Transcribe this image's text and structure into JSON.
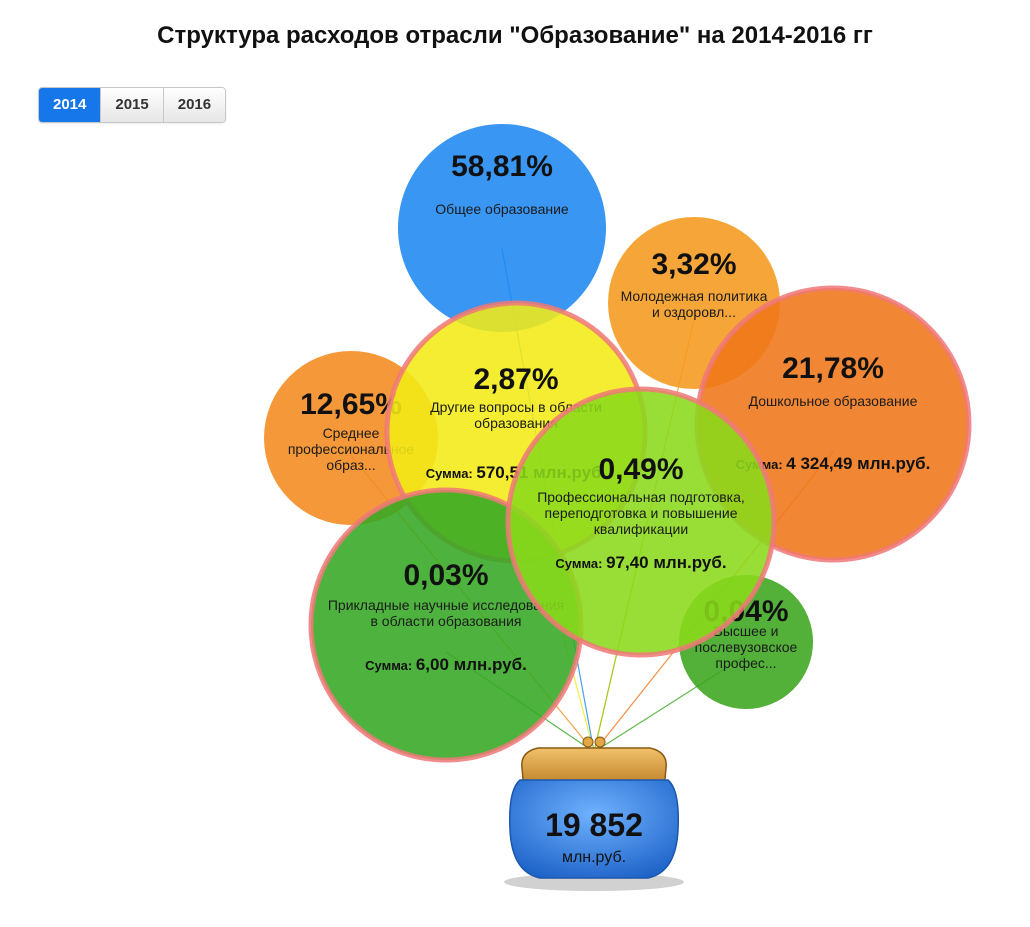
{
  "page": {
    "title": "Структура расходов отрасли \"Образование\" на 2014-2016 гг"
  },
  "year_tabs": [
    {
      "label": "2014",
      "active": true
    },
    {
      "label": "2015",
      "active": false
    },
    {
      "label": "2016",
      "active": false
    }
  ],
  "wallet": {
    "total": "19 852",
    "unit": "млн.руб."
  },
  "chart_data": {
    "type": "bubble",
    "title": "Структура расходов отрасли \"Образование\" на 2014-2016 гг",
    "selected_year": "2014",
    "total_value": 19852,
    "total_unit": "млн.руб.",
    "sum_prefix": "Сумма:",
    "sum_unit": "млн.руб.",
    "series": [
      {
        "id": "general",
        "percent_label": "58,81%",
        "percent": 58.81,
        "lines": [
          "Общее образование"
        ],
        "sum": null,
        "color": "#1e88f0",
        "highlight": false
      },
      {
        "id": "youth",
        "percent_label": "3,32%",
        "percent": 3.32,
        "lines": [
          "Молодежная политика",
          "и оздоровл..."
        ],
        "sum": null,
        "color": "#f59a1e",
        "highlight": false
      },
      {
        "id": "preschool",
        "percent_label": "21,78%",
        "percent": 21.78,
        "lines": [
          "Дошкольное образование"
        ],
        "sum": "4 324,49",
        "color": "#ef7618",
        "highlight": true
      },
      {
        "id": "secondary",
        "percent_label": "12,65%",
        "percent": 12.65,
        "lines": [
          "Среднее",
          "профессиональное",
          "образ..."
        ],
        "sum": null,
        "color": "#f38a1e",
        "highlight": false
      },
      {
        "id": "other",
        "percent_label": "2,87%",
        "percent": 2.87,
        "lines": [
          "Другие вопросы в области",
          "образования"
        ],
        "sum": "570,51",
        "color": "#f2ea16",
        "highlight": true
      },
      {
        "id": "applied",
        "percent_label": "0,03%",
        "percent": 0.03,
        "lines": [
          "Прикладные научные исследования",
          "в области образования"
        ],
        "sum": "6,00",
        "color": "#35a823",
        "highlight": true
      },
      {
        "id": "higher",
        "percent_label": "0,04%",
        "percent": 0.04,
        "lines": [
          "Высшее и",
          "послевузовское",
          "профес..."
        ],
        "sum": null,
        "color": "#3ba51e",
        "highlight": false
      },
      {
        "id": "professional",
        "percent_label": "0,49%",
        "percent": 0.49,
        "lines": [
          "Профессиональная подготовка,",
          "переподготовка и повышение",
          "квалификации"
        ],
        "sum": "97,40",
        "color": "#8ad91a",
        "highlight": true
      }
    ]
  }
}
